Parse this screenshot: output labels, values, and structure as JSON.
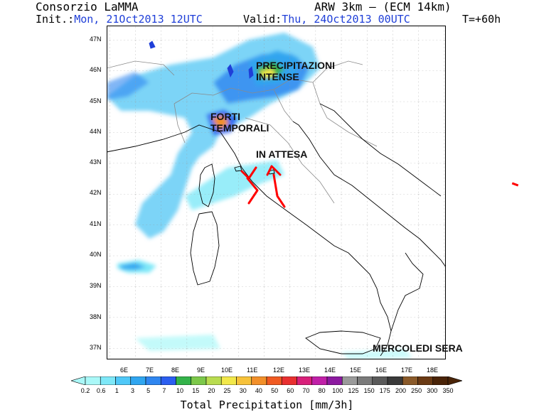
{
  "header": {
    "org": "Consorzio LaMMA",
    "init_label": "Init.:",
    "init_value": "Mon, 21Oct2013 12UTC",
    "model": "ARW 3km – (ECM 14km)",
    "valid_label": "Valid:",
    "valid_value": "Thu, 24Oct2013 00UTC",
    "step": "T=+60h"
  },
  "map": {
    "lat_labels": [
      "47N",
      "46N",
      "45N",
      "44N",
      "43N",
      "42N",
      "41N",
      "40N",
      "39N",
      "38N",
      "37N"
    ],
    "lon_labels": [
      "6E",
      "7E",
      "8E",
      "9E",
      "10E",
      "11E",
      "12E",
      "13E",
      "14E",
      "15E",
      "16E",
      "17E",
      "18E"
    ],
    "annotations": {
      "precip_line1": "PRECIPITAZIONI",
      "precip_line2": "INTENSE",
      "storm_line1": "FORTI",
      "storm_line2": "TEMPORALI",
      "waiting": "IN ATTESA",
      "day": "MERCOLEDI SERA"
    },
    "colors": {
      "sea": "#ffffff",
      "border": "#9a9a9a",
      "coast": "#000000",
      "arrow": "#ff0000"
    }
  },
  "colorbar": {
    "title": "Total Precipitation [mm/3h]",
    "labels": [
      "0.2",
      "0.6",
      "1",
      "3",
      "5",
      "7",
      "10",
      "15",
      "20",
      "25",
      "30",
      "40",
      "50",
      "60",
      "70",
      "80",
      "100",
      "125",
      "150",
      "175",
      "200",
      "250",
      "300",
      "350"
    ],
    "colors": [
      "#aaf8f8",
      "#7ee8f8",
      "#4fc8f8",
      "#30a6f0",
      "#2f86f0",
      "#2b5ef0",
      "#34b34a",
      "#7cc84a",
      "#b9dc50",
      "#f2e84a",
      "#f7c23a",
      "#f2902a",
      "#f05a22",
      "#e83030",
      "#d8207a",
      "#c020a8",
      "#8c1aa0",
      "#9a9a9a",
      "#7a7a7a",
      "#5a5a5a",
      "#3a3a3a",
      "#8a5a2a",
      "#6a3a14",
      "#4a2408"
    ]
  }
}
